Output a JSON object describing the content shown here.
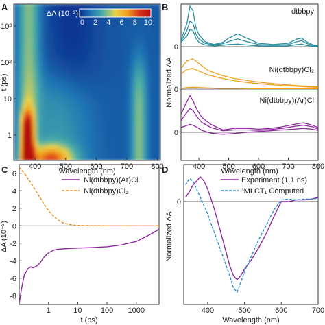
{
  "panels": {
    "a": {
      "letter": "A"
    },
    "b": {
      "letter": "B"
    },
    "c": {
      "letter": "C"
    },
    "d": {
      "letter": "D"
    }
  },
  "chart_data": [
    {
      "panel": "A",
      "type": "heatmap",
      "xlabel": "Wavelength (nm)",
      "ylabel": "t (ps)",
      "x_ticks": [
        "400",
        "500",
        "600",
        "700",
        "800"
      ],
      "y_ticks": [
        "1",
        "10",
        "10²",
        "10³"
      ],
      "xlim": [
        330,
        810
      ],
      "y_scale": "log",
      "ylim": [
        0.2,
        4000
      ],
      "colorbar": {
        "label": "ΔA (10⁻³)",
        "ticks": [
          "0",
          "2",
          "4",
          "6",
          "8",
          "10"
        ],
        "range": [
          0,
          10
        ],
        "colors": [
          "#0b2f8f",
          "#1f77b4",
          "#4fb0a5",
          "#e8d24a",
          "#f0a020",
          "#d8341c",
          "#b30d0d"
        ]
      },
      "features": [
        {
          "name": "intense band",
          "center_nm": 375,
          "max_value": 10,
          "from_t": 0.2,
          "to_t": 5
        },
        {
          "name": "broad early feature",
          "center_nm": 450,
          "max_value": 6,
          "from_t": 0.2,
          "to_t": 0.5
        },
        {
          "name": "near-ir band",
          "center_nm": 740,
          "max_value": 3,
          "from_t": 0.3,
          "to_t": 100
        },
        {
          "name": "long-lived band",
          "center_nm": 380,
          "max_value": 3,
          "from_t": 5,
          "to_t": 4000
        }
      ]
    },
    {
      "panel": "B",
      "type": "line",
      "xlabel": "Wavelength (nm)",
      "ylabel": "Normalized ΔA",
      "x_ticks": [
        "400",
        "500",
        "600",
        "700",
        "800"
      ],
      "xlim": [
        340,
        800
      ],
      "groups": [
        {
          "name": "dtbbpy",
          "color": "#2a8fa0",
          "zero_label": "0",
          "curves": [
            {
              "x": [
                340,
                360,
                370,
                380,
                390,
                400,
                420,
                450,
                480,
                500,
                530,
                560,
                600,
                650,
                700,
                730,
                745,
                760,
                780,
                800
              ],
              "y": [
                0.15,
                0.55,
                0.95,
                0.85,
                0.45,
                0.28,
                0.12,
                0.05,
                0.1,
                0.2,
                0.3,
                0.2,
                0.08,
                0.05,
                0.08,
                0.18,
                0.2,
                0.12,
                0.05,
                0.02
              ]
            },
            {
              "x": [
                340,
                360,
                370,
                380,
                390,
                400,
                420,
                450,
                480,
                500,
                530,
                560,
                600,
                650,
                700,
                730,
                745,
                760,
                780,
                800
              ],
              "y": [
                0.12,
                0.38,
                0.6,
                0.55,
                0.3,
                0.18,
                0.08,
                0.04,
                0.07,
                0.12,
                0.18,
                0.12,
                0.05,
                0.03,
                0.05,
                0.12,
                0.14,
                0.08,
                0.03,
                0.01
              ]
            },
            {
              "x": [
                340,
                360,
                370,
                380,
                390,
                400,
                420,
                450,
                480,
                500,
                530,
                560,
                600,
                650,
                700,
                730,
                745,
                760,
                780,
                800
              ],
              "y": [
                0.1,
                0.25,
                0.4,
                0.38,
                0.2,
                0.1,
                0.04,
                0.02,
                0.03,
                0.05,
                0.06,
                0.04,
                0.02,
                0.01,
                0.02,
                0.05,
                0.06,
                0.03,
                0.01,
                0.0
              ]
            }
          ]
        },
        {
          "name": "Ni(dtbbpy)Cl₂",
          "color": "#f0a020",
          "zero_label": "0",
          "curves": [
            {
              "x": [
                340,
                360,
                380,
                400,
                430,
                470,
                520,
                570,
                620,
                670,
                720,
                760,
                800
              ],
              "y": [
                0.55,
                0.75,
                0.8,
                0.68,
                0.5,
                0.38,
                0.28,
                0.22,
                0.17,
                0.13,
                0.1,
                0.08,
                0.06
              ]
            },
            {
              "x": [
                340,
                360,
                380,
                400,
                430,
                470,
                520,
                570,
                620,
                670,
                720,
                760,
                800
              ],
              "y": [
                0.4,
                0.52,
                0.55,
                0.48,
                0.38,
                0.3,
                0.22,
                0.17,
                0.13,
                0.1,
                0.08,
                0.06,
                0.05
              ]
            },
            {
              "x": [
                340,
                360,
                380,
                400,
                430,
                470,
                520,
                570,
                620,
                670,
                720,
                760,
                800
              ],
              "y": [
                0.02,
                0.04,
                0.05,
                0.04,
                0.03,
                0.02,
                0.02,
                0.01,
                0.01,
                0.01,
                0.01,
                0.01,
                0.01
              ]
            }
          ]
        },
        {
          "name": "Ni(dtbbpy)(Ar)Cl",
          "color": "#8e2a9e",
          "zero_label": "0",
          "curves": [
            {
              "x": [
                340,
                355,
                370,
                380,
                395,
                410,
                440,
                480,
                520,
                560,
                600,
                640,
                680,
                720,
                750,
                780,
                800
              ],
              "y": [
                0.45,
                0.7,
                0.92,
                0.8,
                0.55,
                0.38,
                0.2,
                0.06,
                0.1,
                0.1,
                0.08,
                0.1,
                0.14,
                0.2,
                0.24,
                0.18,
                0.12
              ]
            },
            {
              "x": [
                340,
                355,
                370,
                380,
                395,
                410,
                440,
                480,
                520,
                560,
                600,
                640,
                680,
                720,
                750,
                780,
                800
              ],
              "y": [
                0.3,
                0.45,
                0.6,
                0.55,
                0.38,
                0.25,
                0.12,
                0.04,
                0.06,
                0.06,
                0.05,
                0.07,
                0.1,
                0.15,
                0.18,
                0.14,
                0.08
              ]
            },
            {
              "x": [
                340,
                355,
                370,
                380,
                395,
                410,
                440,
                480,
                520,
                560,
                600,
                640,
                680,
                720,
                750,
                780,
                800
              ],
              "y": [
                0.12,
                0.16,
                0.2,
                0.18,
                0.12,
                0.05,
                -0.02,
                -0.05,
                -0.03,
                0.0,
                0.02,
                0.04,
                0.06,
                0.08,
                0.1,
                0.08,
                0.05
              ]
            }
          ]
        }
      ]
    },
    {
      "panel": "C",
      "type": "line",
      "xlabel": "t (ps)",
      "ylabel": "ΔA (10⁻³)",
      "x_scale": "log",
      "xlim": [
        0.1,
        6000
      ],
      "ylim": [
        -9,
        7
      ],
      "x_ticks": [
        "1",
        "10",
        "100",
        "1000"
      ],
      "y_ticks": [
        "6",
        "4",
        "2",
        "0",
        "-2",
        "-4",
        "-6",
        "-8"
      ],
      "legend_position": "top-right",
      "series": [
        {
          "name": "Ni(dtbbpy)(Ar)Cl",
          "color": "#8e2a9e",
          "style": "solid",
          "x": [
            0.1,
            0.12,
            0.15,
            0.2,
            0.25,
            0.3,
            0.4,
            0.5,
            0.7,
            1,
            1.5,
            2,
            3,
            5,
            10,
            30,
            100,
            300,
            1000,
            3000,
            6000
          ],
          "y": [
            -8.9,
            -7.2,
            -5.6,
            -4.9,
            -4.7,
            -4.8,
            -4.6,
            -4.3,
            -3.6,
            -3.1,
            -2.8,
            -2.7,
            -2.65,
            -2.6,
            -2.55,
            -2.5,
            -2.4,
            -2.2,
            -1.8,
            -1.0,
            -0.4
          ]
        },
        {
          "name": "Ni(dtbbpy)Cl₂",
          "color": "#e89020",
          "style": "dashed",
          "x": [
            0.1,
            0.15,
            0.2,
            0.3,
            0.5,
            0.7,
            1,
            1.5,
            2,
            3,
            5,
            7,
            10,
            20,
            50,
            100,
            1000,
            6000
          ],
          "y": [
            6.7,
            6.0,
            5.4,
            4.5,
            3.3,
            2.5,
            1.7,
            1.1,
            0.7,
            0.35,
            0.15,
            0.08,
            0.04,
            0.02,
            0.01,
            0.0,
            0.0,
            0.0
          ]
        }
      ]
    },
    {
      "panel": "D",
      "type": "line",
      "xlabel": "Wavelength (nm)",
      "ylabel": "Normalized ΔA",
      "xlim": [
        335,
        700
      ],
      "ylim": [
        -1.25,
        0.45
      ],
      "x_ticks": [
        "400",
        "500",
        "600",
        "700"
      ],
      "y_ticks": [
        "0"
      ],
      "legend_position": "top-right",
      "series": [
        {
          "name": "Experiment (1.1 ns)",
          "color": "#8e2a9e",
          "style": "solid",
          "x": [
            340,
            350,
            360,
            370,
            380,
            390,
            400,
            410,
            420,
            440,
            460,
            470,
            480,
            490,
            500,
            520,
            540,
            560,
            580,
            600,
            620,
            640,
            660,
            680,
            700
          ],
          "y": [
            0.05,
            0.12,
            0.2,
            0.25,
            0.3,
            0.25,
            0.15,
            0.02,
            -0.12,
            -0.45,
            -0.78,
            -0.9,
            -0.95,
            -0.9,
            -0.82,
            -0.7,
            -0.55,
            -0.38,
            -0.18,
            0.0,
            0.0,
            0.02,
            0.02,
            0.03,
            0.05
          ]
        },
        {
          "name": "³MLCT₁ Computed",
          "color": "#2a8fd0",
          "style": "dashed",
          "x": [
            340,
            350,
            360,
            370,
            380,
            390,
            400,
            410,
            420,
            440,
            460,
            470,
            480,
            490,
            500,
            520,
            540,
            560,
            580,
            600,
            620,
            640,
            660,
            680,
            700
          ],
          "y": [
            0.2,
            0.28,
            0.25,
            0.15,
            0.05,
            -0.05,
            -0.15,
            -0.28,
            -0.4,
            -0.65,
            -0.9,
            -1.05,
            -1.1,
            -0.98,
            -0.85,
            -0.65,
            -0.45,
            -0.28,
            -0.1,
            0.02,
            0.03,
            0.02,
            0.03,
            0.03,
            0.04
          ]
        }
      ]
    }
  ]
}
